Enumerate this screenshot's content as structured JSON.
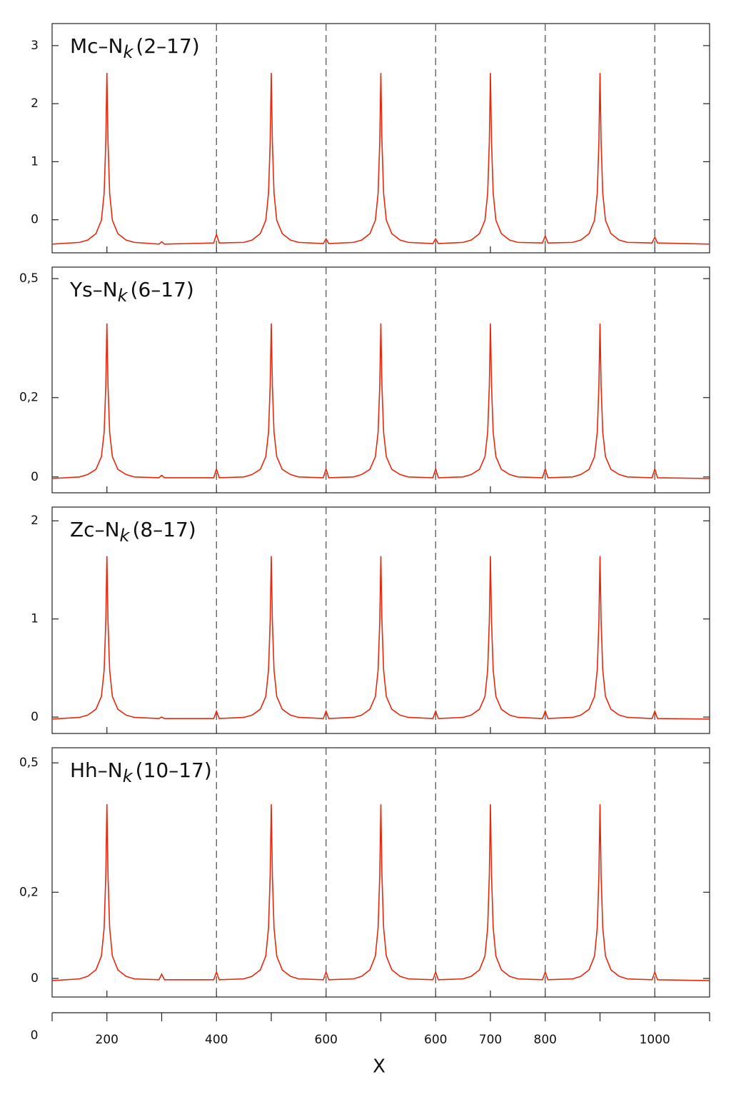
{
  "chart_data": [
    {
      "type": "line",
      "title": [
        "Mc–N",
        "k",
        "(2–17)"
      ],
      "color": "#e8280c",
      "xlim": [
        0,
        12
      ],
      "ylim": [
        -0.57,
        3.38
      ],
      "yticks": [
        0,
        1,
        2,
        3
      ],
      "dashed_lines": [
        3,
        5,
        7,
        9,
        11
      ],
      "x": [
        0,
        0.5,
        0.65,
        0.8,
        0.9,
        0.95,
        0.98,
        1,
        1.02,
        1.05,
        1.1,
        1.2,
        1.35,
        1.5,
        1.95,
        2,
        2.05,
        2.95,
        3,
        3.05,
        3.5,
        3.65,
        3.8,
        3.9,
        3.95,
        3.98,
        4,
        4.02,
        4.05,
        4.1,
        4.2,
        4.35,
        4.5,
        4.95,
        5,
        5.05,
        5.5,
        5.65,
        5.8,
        5.9,
        5.95,
        5.98,
        6,
        6.02,
        6.05,
        6.1,
        6.2,
        6.35,
        6.5,
        6.95,
        7,
        7.05,
        7.5,
        7.65,
        7.8,
        7.9,
        7.95,
        7.98,
        8,
        8.02,
        8.05,
        8.1,
        8.2,
        8.35,
        8.5,
        8.95,
        9,
        9.05,
        9.5,
        9.65,
        9.8,
        9.9,
        9.95,
        9.98,
        10,
        10.02,
        10.05,
        10.1,
        10.2,
        10.35,
        10.5,
        10.95,
        11,
        11.05,
        12
      ],
      "values": [
        -0.42,
        -0.39,
        -0.35,
        -0.24,
        -0.01,
        0.46,
        1.35,
        2.53,
        1.35,
        0.46,
        -0.01,
        -0.24,
        -0.35,
        -0.39,
        -0.42,
        -0.38,
        -0.42,
        -0.4,
        -0.25,
        -0.4,
        -0.39,
        -0.35,
        -0.24,
        -0.01,
        0.46,
        1.35,
        2.53,
        1.35,
        0.46,
        -0.01,
        -0.24,
        -0.35,
        -0.39,
        -0.41,
        -0.33,
        -0.41,
        -0.39,
        -0.35,
        -0.24,
        -0.01,
        0.46,
        1.35,
        2.53,
        1.35,
        0.46,
        -0.01,
        -0.24,
        -0.35,
        -0.39,
        -0.41,
        -0.33,
        -0.41,
        -0.39,
        -0.35,
        -0.24,
        -0.01,
        0.46,
        1.35,
        2.53,
        1.35,
        0.46,
        -0.01,
        -0.24,
        -0.35,
        -0.39,
        -0.4,
        -0.28,
        -0.4,
        -0.39,
        -0.35,
        -0.24,
        -0.01,
        0.46,
        1.35,
        2.53,
        1.35,
        0.46,
        -0.01,
        -0.24,
        -0.35,
        -0.39,
        -0.4,
        -0.3,
        -0.4,
        -0.42
      ]
    },
    {
      "type": "line",
      "title": [
        "Ys–N",
        "k",
        "(6–17)"
      ],
      "color": "#e8280c",
      "xlim": [
        0,
        12
      ],
      "ylim": [
        -0.04,
        0.529
      ],
      "yticks": [
        0,
        {
          "value": 0.2,
          "label": "0,2"
        },
        {
          "value": 0.5,
          "label": "0,5"
        }
      ],
      "dashed_lines": [
        3,
        5,
        7,
        9,
        11
      ],
      "x": [
        0,
        0.5,
        0.65,
        0.8,
        0.9,
        0.95,
        0.98,
        1,
        1.02,
        1.05,
        1.1,
        1.2,
        1.35,
        1.5,
        1.95,
        2,
        2.05,
        2.95,
        3,
        3.05,
        3.5,
        3.65,
        3.8,
        3.9,
        3.95,
        3.98,
        4,
        4.02,
        4.05,
        4.1,
        4.2,
        4.35,
        4.5,
        4.95,
        5,
        5.05,
        5.5,
        5.65,
        5.8,
        5.9,
        5.95,
        5.98,
        6,
        6.02,
        6.05,
        6.1,
        6.2,
        6.35,
        6.5,
        6.95,
        7,
        7.05,
        7.5,
        7.65,
        7.8,
        7.9,
        7.95,
        7.98,
        8,
        8.02,
        8.05,
        8.1,
        8.2,
        8.35,
        8.5,
        8.95,
        9,
        9.05,
        9.5,
        9.65,
        9.8,
        9.9,
        9.95,
        9.98,
        10,
        10.02,
        10.05,
        10.1,
        10.2,
        10.35,
        10.5,
        10.95,
        11,
        11.05,
        12
      ],
      "values": [
        -0.004,
        0.0,
        0.006,
        0.019,
        0.051,
        0.113,
        0.231,
        0.387,
        0.231,
        0.113,
        0.051,
        0.019,
        0.006,
        0.0,
        -0.002,
        0.004,
        -0.002,
        -0.002,
        0.02,
        -0.002,
        0.0,
        0.006,
        0.019,
        0.051,
        0.113,
        0.231,
        0.387,
        0.231,
        0.113,
        0.051,
        0.019,
        0.006,
        0.0,
        -0.002,
        0.02,
        -0.002,
        0.0,
        0.006,
        0.019,
        0.051,
        0.113,
        0.231,
        0.387,
        0.231,
        0.113,
        0.051,
        0.019,
        0.006,
        0.0,
        -0.002,
        0.02,
        -0.002,
        0.0,
        0.006,
        0.019,
        0.051,
        0.113,
        0.231,
        0.387,
        0.231,
        0.113,
        0.051,
        0.019,
        0.006,
        0.0,
        -0.002,
        0.02,
        -0.002,
        0.0,
        0.006,
        0.019,
        0.051,
        0.113,
        0.231,
        0.387,
        0.231,
        0.113,
        0.051,
        0.019,
        0.006,
        0.0,
        -0.002,
        0.02,
        -0.002,
        -0.004
      ]
    },
    {
      "type": "line",
      "title": [
        "Zc–N",
        "k",
        "(8–17)"
      ],
      "color": "#e8280c",
      "xlim": [
        0,
        12
      ],
      "ylim": [
        -0.167,
        2.14
      ],
      "yticks": [
        0,
        1,
        2
      ],
      "dashed_lines": [
        3,
        5,
        7,
        9,
        11
      ],
      "x": [
        0,
        0.5,
        0.65,
        0.8,
        0.9,
        0.95,
        0.98,
        1,
        1.02,
        1.05,
        1.1,
        1.2,
        1.35,
        1.5,
        1.95,
        2,
        2.05,
        2.95,
        3,
        3.05,
        3.5,
        3.65,
        3.8,
        3.9,
        3.95,
        3.98,
        4,
        4.02,
        4.05,
        4.1,
        4.2,
        4.35,
        4.5,
        4.95,
        5,
        5.05,
        5.5,
        5.65,
        5.8,
        5.9,
        5.95,
        5.98,
        6,
        6.02,
        6.05,
        6.1,
        6.2,
        6.35,
        6.5,
        6.95,
        7,
        7.05,
        7.5,
        7.65,
        7.8,
        7.9,
        7.95,
        7.98,
        8,
        8.02,
        8.05,
        8.1,
        8.2,
        8.35,
        8.5,
        8.95,
        9,
        9.05,
        9.5,
        9.65,
        9.8,
        9.9,
        9.95,
        9.98,
        10,
        10.02,
        10.05,
        10.1,
        10.2,
        10.35,
        10.5,
        10.95,
        11,
        11.05,
        12
      ],
      "values": [
        -0.02,
        -0.003,
        0.02,
        0.08,
        0.21,
        0.48,
        0.98,
        1.64,
        0.98,
        0.48,
        0.21,
        0.08,
        0.02,
        -0.003,
        -0.015,
        0.0,
        -0.015,
        -0.015,
        0.06,
        -0.015,
        -0.003,
        0.02,
        0.08,
        0.21,
        0.48,
        0.98,
        1.64,
        0.98,
        0.48,
        0.21,
        0.08,
        0.02,
        -0.003,
        -0.015,
        0.06,
        -0.015,
        -0.003,
        0.02,
        0.08,
        0.21,
        0.48,
        0.98,
        1.64,
        0.98,
        0.48,
        0.21,
        0.08,
        0.02,
        -0.003,
        -0.015,
        0.06,
        -0.015,
        -0.003,
        0.02,
        0.08,
        0.21,
        0.48,
        0.98,
        1.64,
        0.98,
        0.48,
        0.21,
        0.08,
        0.02,
        -0.003,
        -0.015,
        0.06,
        -0.015,
        -0.003,
        0.02,
        0.08,
        0.21,
        0.48,
        0.98,
        1.64,
        0.98,
        0.48,
        0.21,
        0.08,
        0.02,
        -0.003,
        -0.015,
        0.06,
        -0.015,
        -0.02
      ]
    },
    {
      "type": "line",
      "title": [
        "Hh–N",
        "k",
        "(10–17)"
      ],
      "color": "#e8280c",
      "xlim": [
        0,
        12
      ],
      "ylim": [
        -0.043,
        0.535
      ],
      "yticks": [
        0,
        {
          "value": 0.2,
          "label": "0,2"
        },
        {
          "value": 0.5,
          "label": "0,5"
        }
      ],
      "dashed_lines": [
        3,
        5,
        7,
        9,
        11
      ],
      "x": [
        0,
        0.5,
        0.65,
        0.8,
        0.9,
        0.95,
        0.98,
        1,
        1.02,
        1.05,
        1.1,
        1.2,
        1.35,
        1.5,
        1.95,
        2,
        2.05,
        2.95,
        3,
        3.05,
        3.5,
        3.65,
        3.8,
        3.9,
        3.95,
        3.98,
        4,
        4.02,
        4.05,
        4.1,
        4.2,
        4.35,
        4.5,
        4.95,
        5,
        5.05,
        5.5,
        5.65,
        5.8,
        5.9,
        5.95,
        5.98,
        6,
        6.02,
        6.05,
        6.1,
        6.2,
        6.35,
        6.5,
        6.95,
        7,
        7.05,
        7.5,
        7.65,
        7.8,
        7.9,
        7.95,
        7.98,
        8,
        8.02,
        8.05,
        8.1,
        8.2,
        8.35,
        8.5,
        8.95,
        9,
        9.05,
        9.5,
        9.65,
        9.8,
        9.9,
        9.95,
        9.98,
        10,
        10.02,
        10.05,
        10.1,
        10.2,
        10.35,
        10.5,
        10.95,
        11,
        11.05,
        12
      ],
      "values": [
        -0.005,
        -0.001,
        0.005,
        0.02,
        0.052,
        0.118,
        0.24,
        0.404,
        0.24,
        0.118,
        0.052,
        0.02,
        0.005,
        -0.001,
        -0.003,
        0.01,
        -0.003,
        -0.003,
        0.015,
        -0.003,
        -0.001,
        0.005,
        0.02,
        0.052,
        0.118,
        0.24,
        0.404,
        0.24,
        0.118,
        0.052,
        0.02,
        0.005,
        -0.001,
        -0.003,
        0.015,
        -0.003,
        -0.001,
        0.005,
        0.02,
        0.052,
        0.118,
        0.24,
        0.404,
        0.24,
        0.118,
        0.052,
        0.02,
        0.005,
        -0.001,
        -0.003,
        0.015,
        -0.003,
        -0.001,
        0.005,
        0.02,
        0.052,
        0.118,
        0.24,
        0.404,
        0.24,
        0.118,
        0.052,
        0.02,
        0.005,
        -0.001,
        -0.003,
        0.015,
        -0.003,
        -0.001,
        0.005,
        0.02,
        0.052,
        0.118,
        0.24,
        0.404,
        0.24,
        0.118,
        0.052,
        0.02,
        0.005,
        -0.001,
        -0.003,
        0.015,
        -0.003,
        -0.005
      ]
    }
  ],
  "x_axis": {
    "categories": [
      null,
      "200",
      null,
      "400",
      null,
      "600",
      null,
      "600",
      "700",
      "800",
      null,
      "1000",
      null
    ],
    "label": "X",
    "origin_label": "0"
  }
}
